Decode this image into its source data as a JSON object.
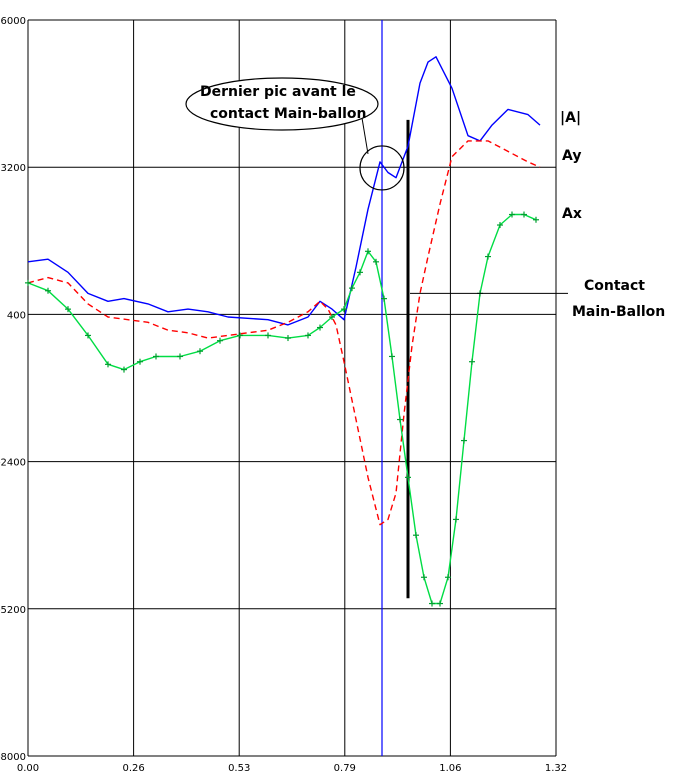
{
  "chart_data": {
    "type": "line",
    "title": "",
    "xlabel": "",
    "ylabel": "",
    "xlim": [
      0,
      1.32
    ],
    "ylim": [
      -8000,
      6000
    ],
    "x_ticks": [
      "0.00",
      "0.26",
      "0.53",
      "0.79",
      "1.06",
      "1.32"
    ],
    "y_ticks": [
      "6000",
      "3200",
      "400",
      "-2400",
      "-5200",
      "-8000"
    ],
    "grid": true,
    "series": [
      {
        "name": "|A|",
        "color": "#0000ff",
        "style": "solid",
        "points": [
          [
            0,
            1400
          ],
          [
            0.05,
            1450
          ],
          [
            0.1,
            1200
          ],
          [
            0.15,
            800
          ],
          [
            0.2,
            650
          ],
          [
            0.24,
            700
          ],
          [
            0.3,
            600
          ],
          [
            0.35,
            450
          ],
          [
            0.4,
            500
          ],
          [
            0.45,
            450
          ],
          [
            0.5,
            350
          ],
          [
            0.6,
            300
          ],
          [
            0.65,
            200
          ],
          [
            0.7,
            350
          ],
          [
            0.73,
            650
          ],
          [
            0.76,
            500
          ],
          [
            0.79,
            300
          ],
          [
            0.82,
            1300
          ],
          [
            0.85,
            2400
          ],
          [
            0.88,
            3300
          ],
          [
            0.9,
            3100
          ],
          [
            0.92,
            3000
          ],
          [
            0.95,
            3600
          ],
          [
            0.98,
            4800
          ],
          [
            1.0,
            5200
          ],
          [
            1.02,
            5300
          ],
          [
            1.06,
            4700
          ],
          [
            1.1,
            3800
          ],
          [
            1.13,
            3700
          ],
          [
            1.16,
            4000
          ],
          [
            1.2,
            4300
          ],
          [
            1.25,
            4200
          ],
          [
            1.28,
            4000
          ]
        ]
      },
      {
        "name": "Ay",
        "color": "#ff0000",
        "style": "dashed",
        "points": [
          [
            0,
            1000
          ],
          [
            0.05,
            1100
          ],
          [
            0.1,
            1000
          ],
          [
            0.15,
            600
          ],
          [
            0.2,
            350
          ],
          [
            0.25,
            300
          ],
          [
            0.3,
            250
          ],
          [
            0.35,
            100
          ],
          [
            0.4,
            50
          ],
          [
            0.45,
            -50
          ],
          [
            0.5,
            0
          ],
          [
            0.6,
            100
          ],
          [
            0.65,
            250
          ],
          [
            0.7,
            450
          ],
          [
            0.73,
            650
          ],
          [
            0.75,
            500
          ],
          [
            0.77,
            200
          ],
          [
            0.79,
            -500
          ],
          [
            0.82,
            -1600
          ],
          [
            0.85,
            -2700
          ],
          [
            0.88,
            -3600
          ],
          [
            0.9,
            -3500
          ],
          [
            0.92,
            -3000
          ],
          [
            0.94,
            -1500
          ],
          [
            0.96,
            -200
          ],
          [
            0.98,
            800
          ],
          [
            1.0,
            1500
          ],
          [
            1.03,
            2500
          ],
          [
            1.06,
            3400
          ],
          [
            1.1,
            3700
          ],
          [
            1.15,
            3700
          ],
          [
            1.2,
            3500
          ],
          [
            1.25,
            3300
          ],
          [
            1.28,
            3200
          ]
        ]
      },
      {
        "name": "Ax",
        "color": "#00dd44",
        "style": "solid-plus-markers",
        "points": [
          [
            0,
            1000
          ],
          [
            0.05,
            850
          ],
          [
            0.1,
            500
          ],
          [
            0.15,
            0
          ],
          [
            0.2,
            -550
          ],
          [
            0.24,
            -650
          ],
          [
            0.28,
            -500
          ],
          [
            0.32,
            -400
          ],
          [
            0.38,
            -400
          ],
          [
            0.43,
            -300
          ],
          [
            0.48,
            -100
          ],
          [
            0.53,
            0
          ],
          [
            0.6,
            0
          ],
          [
            0.65,
            -50
          ],
          [
            0.7,
            0
          ],
          [
            0.73,
            150
          ],
          [
            0.76,
            350
          ],
          [
            0.79,
            500
          ],
          [
            0.81,
            900
          ],
          [
            0.83,
            1200
          ],
          [
            0.85,
            1600
          ],
          [
            0.87,
            1400
          ],
          [
            0.89,
            700
          ],
          [
            0.91,
            -400
          ],
          [
            0.93,
            -1600
          ],
          [
            0.95,
            -2700
          ],
          [
            0.97,
            -3800
          ],
          [
            0.99,
            -4600
          ],
          [
            1.01,
            -5100
          ],
          [
            1.03,
            -5100
          ],
          [
            1.05,
            -4600
          ],
          [
            1.07,
            -3500
          ],
          [
            1.09,
            -2000
          ],
          [
            1.11,
            -500
          ],
          [
            1.13,
            800
          ],
          [
            1.15,
            1500
          ],
          [
            1.18,
            2100
          ],
          [
            1.21,
            2300
          ],
          [
            1.24,
            2300
          ],
          [
            1.27,
            2200
          ]
        ]
      }
    ],
    "vertical_markers": [
      {
        "x": 0.885,
        "color": "#0000ff"
      },
      {
        "x": 0.95,
        "color": "#000000",
        "y_from": -5000,
        "y_to": 4100
      }
    ],
    "annotations": [
      {
        "id": "peak",
        "text_lines": [
          "Dernier pic avant le",
          "contact Main-ballon"
        ],
        "circle_at": [
          0.885,
          3300
        ]
      },
      {
        "id": "contact",
        "text_lines": [
          "Contact",
          "Main-Ballon"
        ],
        "arrow_to": [
          0.96,
          800
        ]
      }
    ]
  }
}
